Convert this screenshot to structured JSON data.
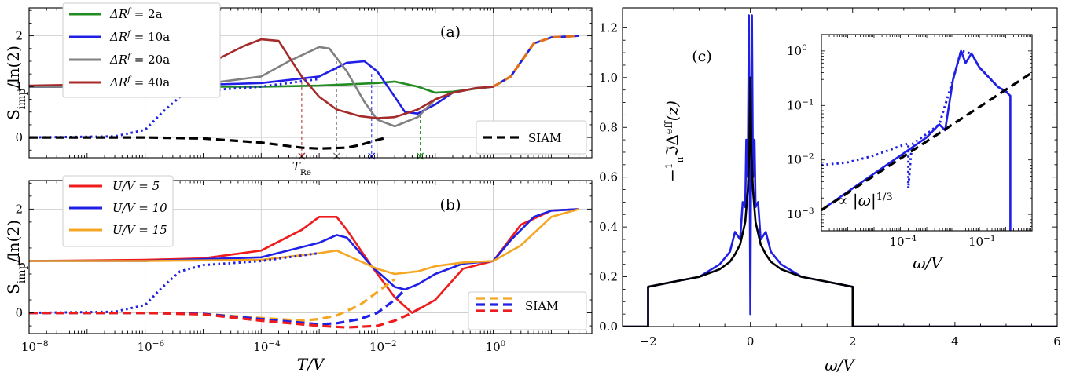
{
  "chart_data": [
    {
      "panel": "(a)",
      "type": "line",
      "xscale": "log",
      "xlim": [
        1e-08,
        50
      ],
      "ylim": [
        -0.4,
        2.55
      ],
      "ylabel": "S_imp/ln(2)",
      "xlabel": "",
      "grid": true,
      "legend_position": "top-left",
      "yticks": [
        "0",
        "1",
        "2"
      ],
      "series": [
        {
          "name": "ΔR^f = 2a",
          "color": "#228b22",
          "style": "solid",
          "x": [
            1e-08,
            1e-06,
            0.0001,
            0.001,
            0.01,
            0.02,
            0.05,
            0.1,
            0.2,
            0.5,
            1,
            2,
            5,
            10,
            30
          ],
          "y": [
            1.0,
            1.0,
            1.0,
            1.02,
            1.07,
            1.1,
            1.0,
            0.88,
            0.9,
            0.96,
            1.0,
            1.2,
            1.85,
            1.97,
            2.0
          ]
        },
        {
          "name": "ΔR^f = 10a",
          "color": "#1f1fe6",
          "style": "solid",
          "x": [
            1e-08,
            1e-06,
            0.0001,
            0.001,
            0.003,
            0.006,
            0.01,
            0.02,
            0.03,
            0.05,
            0.1,
            0.2,
            0.5,
            1,
            2,
            5,
            10,
            30
          ],
          "y": [
            1.0,
            1.0,
            1.07,
            1.2,
            1.47,
            1.5,
            1.3,
            0.8,
            0.5,
            0.47,
            0.65,
            0.88,
            0.97,
            1.0,
            1.2,
            1.85,
            1.97,
            2.0
          ]
        },
        {
          "name": "ΔR^f = 20a",
          "color": "#808080",
          "style": "solid",
          "x": [
            1e-08,
            1e-06,
            1e-05,
            0.0001,
            0.0003,
            0.001,
            0.0015,
            0.003,
            0.006,
            0.01,
            0.02,
            0.05,
            0.1,
            0.2,
            0.5,
            1
          ],
          "y": [
            1.0,
            1.0,
            1.05,
            1.2,
            1.5,
            1.78,
            1.75,
            1.3,
            0.7,
            0.35,
            0.22,
            0.4,
            0.75,
            0.88,
            0.97,
            1.0
          ]
        },
        {
          "name": "ΔR^f = 40a",
          "color": "#a52a2a",
          "style": "solid",
          "x": [
            1e-08,
            1e-07,
            1e-06,
            1e-05,
            5e-05,
            0.0001,
            0.0002,
            0.0005,
            0.001,
            0.002,
            0.005,
            0.01,
            0.02,
            0.05,
            0.1,
            0.2,
            0.5,
            1
          ],
          "y": [
            1.02,
            1.04,
            1.1,
            1.4,
            1.8,
            1.93,
            1.9,
            1.2,
            0.8,
            0.55,
            0.42,
            0.38,
            0.4,
            0.55,
            0.75,
            0.88,
            0.97,
            1.0
          ]
        },
        {
          "name": "",
          "color": "#1f1fe6",
          "style": "dotted",
          "x": [
            1e-08,
            3e-07,
            1e-06,
            2e-06,
            4e-06,
            1e-05,
            0.0001,
            0.001
          ],
          "y": [
            0.0,
            0.02,
            0.15,
            0.5,
            0.8,
            0.92,
            1.0,
            1.15
          ]
        },
        {
          "name": "SIAM",
          "color": "#000000",
          "style": "dashed",
          "x": [
            1e-08,
            1e-06,
            1e-05,
            0.0001,
            0.0005,
            0.001,
            0.003,
            0.005,
            0.01,
            0.015
          ],
          "y": [
            0.0,
            0.0,
            -0.02,
            -0.1,
            -0.2,
            -0.22,
            -0.2,
            -0.15,
            -0.05,
            0.0
          ]
        },
        {
          "name": "",
          "color": "#e07020",
          "style": "dashed",
          "x": [
            1,
            2,
            5,
            10,
            30
          ],
          "y": [
            1.0,
            1.2,
            1.85,
            1.97,
            2.0
          ]
        }
      ],
      "markers": [
        {
          "x": 0.0005,
          "y_top": 1.1,
          "color": "#a52a2a"
        },
        {
          "x": 0.002,
          "y_top": 1.5,
          "color": "#808080"
        },
        {
          "x": 0.008,
          "y_top": 1.25,
          "color": "#1f1fe6"
        },
        {
          "x": 0.055,
          "y_top": 0.45,
          "color": "#228b22"
        }
      ],
      "annotation": "T_Re"
    },
    {
      "panel": "(b)",
      "type": "line",
      "xscale": "log",
      "xlim": [
        1e-08,
        50
      ],
      "ylim": [
        -0.4,
        2.55
      ],
      "ylabel": "S_imp/ln(2)",
      "xlabel": "T/V",
      "grid": true,
      "legend_position": "top-left",
      "xticks": [
        "10^-8",
        "10^-6",
        "10^-4",
        "10^-2",
        "10^0"
      ],
      "yticks": [
        "0",
        "1",
        "2"
      ],
      "series": [
        {
          "name": "U/V = 5",
          "color": "#ee1c1c",
          "style": "solid",
          "x": [
            1e-08,
            1e-06,
            1e-05,
            0.0001,
            0.0005,
            0.001,
            0.002,
            0.003,
            0.008,
            0.02,
            0.04,
            0.1,
            0.3,
            1,
            3,
            10,
            30
          ],
          "y": [
            1.0,
            1.02,
            1.05,
            1.2,
            1.6,
            1.85,
            1.85,
            1.6,
            0.9,
            0.3,
            0.0,
            0.25,
            0.85,
            1.0,
            1.7,
            1.97,
            2.0
          ]
        },
        {
          "name": "U/V = 10",
          "color": "#1f1fe6",
          "style": "solid",
          "x": [
            1e-08,
            1e-06,
            0.0001,
            0.001,
            0.002,
            0.003,
            0.008,
            0.02,
            0.03,
            0.05,
            0.1,
            0.3,
            1,
            2,
            5,
            10,
            30
          ],
          "y": [
            1.0,
            1.0,
            1.07,
            1.35,
            1.5,
            1.45,
            0.9,
            0.5,
            0.45,
            0.55,
            0.75,
            0.95,
            1.0,
            1.4,
            1.85,
            1.97,
            2.0
          ]
        },
        {
          "name": "U/V = 15",
          "color": "#f5a623",
          "style": "solid",
          "x": [
            1e-08,
            1e-06,
            0.0001,
            0.001,
            0.002,
            0.005,
            0.01,
            0.02,
            0.05,
            0.1,
            0.3,
            1,
            3,
            10,
            30
          ],
          "y": [
            1.0,
            1.0,
            1.02,
            1.15,
            1.2,
            1.0,
            0.85,
            0.75,
            0.8,
            0.9,
            0.97,
            1.0,
            1.3,
            1.85,
            2.0
          ]
        },
        {
          "name": "",
          "color": "#1f1fe6",
          "style": "dotted",
          "x": [
            1e-08,
            3e-07,
            1e-06,
            2e-06,
            4e-06,
            1e-05,
            0.0001,
            0.001
          ],
          "y": [
            0.0,
            0.02,
            0.15,
            0.5,
            0.8,
            0.92,
            1.0,
            1.15
          ]
        },
        {
          "name": "SIAM",
          "color": "#f5a623",
          "style": "dashed",
          "x": [
            1e-08,
            1e-06,
            1e-05,
            0.0001,
            0.0005,
            0.001,
            0.002,
            0.005,
            0.01,
            0.02
          ],
          "y": [
            0.0,
            0.0,
            -0.02,
            -0.1,
            -0.15,
            -0.12,
            -0.05,
            0.15,
            0.4,
            0.65
          ]
        },
        {
          "name": "SIAM",
          "color": "#1f1fe6",
          "style": "dashed",
          "x": [
            1e-08,
            1e-06,
            1e-05,
            0.0001,
            0.001,
            0.002,
            0.005,
            0.01,
            0.02,
            0.03
          ],
          "y": [
            0.0,
            0.0,
            -0.02,
            -0.12,
            -0.22,
            -0.2,
            -0.12,
            0.0,
            0.25,
            0.45
          ]
        },
        {
          "name": "SIAM",
          "color": "#ee1c1c",
          "style": "dashed",
          "x": [
            1e-08,
            1e-06,
            1e-05,
            0.0001,
            0.001,
            0.003,
            0.01,
            0.02,
            0.04,
            0.06
          ],
          "y": [
            0.0,
            0.0,
            -0.03,
            -0.15,
            -0.25,
            -0.28,
            -0.25,
            -0.15,
            0.0,
            0.12
          ]
        }
      ]
    },
    {
      "panel": "(c)",
      "type": "line",
      "xlim": [
        -2.5,
        6
      ],
      "ylim": [
        0,
        1.28
      ],
      "xlabel": "ω/V",
      "ylabel": "-(1/π) ℑ Δ^eff(z)",
      "grid": false,
      "xticks": [
        "−2",
        "0",
        "2",
        "4",
        "6"
      ],
      "yticks": [
        "0.0",
        "0.2",
        "0.4",
        "0.6",
        "0.8",
        "1.0",
        "1.2"
      ],
      "series": [
        {
          "name": "",
          "color": "#1f1fe6",
          "style": "solid",
          "x": [
            -2.5,
            -2.0,
            -2.0,
            -1.5,
            -1.0,
            -0.6,
            -0.4,
            -0.3,
            -0.2,
            -0.15,
            -0.1,
            -0.08,
            -0.05,
            -0.03,
            -0.02,
            0,
            0.02,
            0.03,
            0.05,
            0.08,
            0.1,
            0.15,
            0.2,
            0.3,
            0.4,
            0.6,
            1.0,
            1.5,
            2.0,
            2.0,
            6.0
          ],
          "y": [
            0,
            0,
            0.16,
            0.18,
            0.2,
            0.25,
            0.3,
            0.38,
            0.35,
            0.5,
            0.48,
            0.75,
            0.6,
            1.25,
            0.9,
            0.05,
            0.9,
            1.25,
            0.6,
            0.75,
            0.48,
            0.5,
            0.35,
            0.38,
            0.3,
            0.25,
            0.2,
            0.18,
            0.16,
            0,
            0
          ]
        },
        {
          "name": "",
          "color": "#000000",
          "style": "solid",
          "x": [
            -2.5,
            -2.0,
            -2.0,
            -1.5,
            -1.0,
            -0.6,
            -0.4,
            -0.3,
            -0.2,
            -0.1,
            -0.05,
            -0.02,
            0,
            0.02,
            0.05,
            0.1,
            0.2,
            0.3,
            0.4,
            0.6,
            1.0,
            1.5,
            2.0,
            2.0,
            6.0
          ],
          "y": [
            0,
            0,
            0.16,
            0.18,
            0.2,
            0.23,
            0.26,
            0.29,
            0.33,
            0.42,
            0.55,
            0.7,
            1.0,
            0.7,
            0.55,
            0.42,
            0.33,
            0.29,
            0.26,
            0.23,
            0.2,
            0.18,
            0.16,
            0,
            0
          ]
        }
      ],
      "inset": {
        "xscale": "log",
        "yscale": "log",
        "xlim": [
          1e-07,
          10
        ],
        "ylim": [
          0.0005,
          2
        ],
        "xlabel": "ω/V",
        "xticks": [
          "10^-4",
          "10^-1"
        ],
        "yticks": [
          "10^-3",
          "10^-2",
          "10^-1",
          "10^0"
        ],
        "annotation": "∝ |ω|^{1/3}",
        "series": [
          {
            "name": "",
            "color": "#1f1fe6",
            "style": "solid",
            "x": [
              1e-07,
              1e-06,
              1e-05,
              0.0001,
              0.001,
              0.003,
              0.005,
              0.01,
              0.02,
              0.03,
              0.05,
              0.1,
              0.2,
              0.5,
              1,
              1.5,
              1.5
            ],
            "y": [
              0.0012,
              0.0026,
              0.0056,
              0.012,
              0.026,
              0.045,
              0.035,
              0.3,
              1.0,
              0.6,
              0.9,
              0.5,
              0.35,
              0.22,
              0.18,
              0.15,
              0.0005
            ]
          },
          {
            "name": "",
            "color": "#1f1fe6",
            "style": "dotted",
            "x": [
              1e-07,
              1e-06,
              1e-05,
              0.0001,
              0.0002,
              0.0002,
              0.00025,
              0.0003,
              0.001,
              0.003,
              0.01,
              0.02,
              0.05,
              0.1,
              0.5,
              1.5
            ],
            "y": [
              0.008,
              0.009,
              0.012,
              0.018,
              0.02,
              0.003,
              0.012,
              0.02,
              0.03,
              0.045,
              0.3,
              1.0,
              0.9,
              0.5,
              0.22,
              0.16
            ]
          },
          {
            "name": "",
            "color": "#000000",
            "style": "dashed",
            "x": [
              1e-07,
              10
            ],
            "y": [
              0.0012,
              0.4
            ]
          }
        ]
      }
    }
  ],
  "legend_a": [
    "ΔR^f = 2a",
    "ΔR^f = 10a",
    "ΔR^f = 20a",
    "ΔR^f = 40a"
  ],
  "legend_b": [
    "U/V = 5",
    "U/V = 10",
    "U/V = 15"
  ],
  "siam_label": "SIAM"
}
